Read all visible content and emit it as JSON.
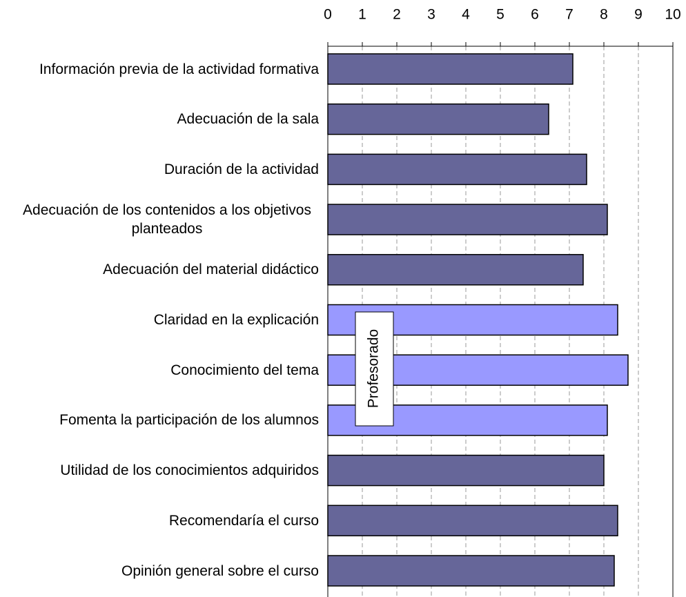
{
  "chart_data": {
    "type": "bar",
    "orientation": "horizontal",
    "categories": [
      "Información previa de la actividad formativa",
      "Adecuación de la sala",
      "Duración de la actividad",
      "Adecuación de los contenidos a los objetivos planteados",
      "Adecuación del material didáctico",
      "Claridad en la explicación",
      "Conocimiento del tema",
      "Fomenta la participación de los alumnos",
      "Utilidad de los conocimientos adquiridos",
      "Recomendaría el curso",
      "Opinión general sobre el curso"
    ],
    "values": [
      7.1,
      6.4,
      7.5,
      8.1,
      7.4,
      8.4,
      8.7,
      8.1,
      8.0,
      8.4,
      8.3
    ],
    "colors": [
      "#666699",
      "#666699",
      "#666699",
      "#666699",
      "#666699",
      "#9999ff",
      "#9999ff",
      "#9999ff",
      "#666699",
      "#666699",
      "#666699"
    ],
    "xlim": [
      0,
      10
    ],
    "xticks": [
      0,
      1,
      2,
      3,
      4,
      5,
      6,
      7,
      8,
      9,
      10
    ],
    "grid": true,
    "annotations": [
      "Profesorado"
    ]
  }
}
